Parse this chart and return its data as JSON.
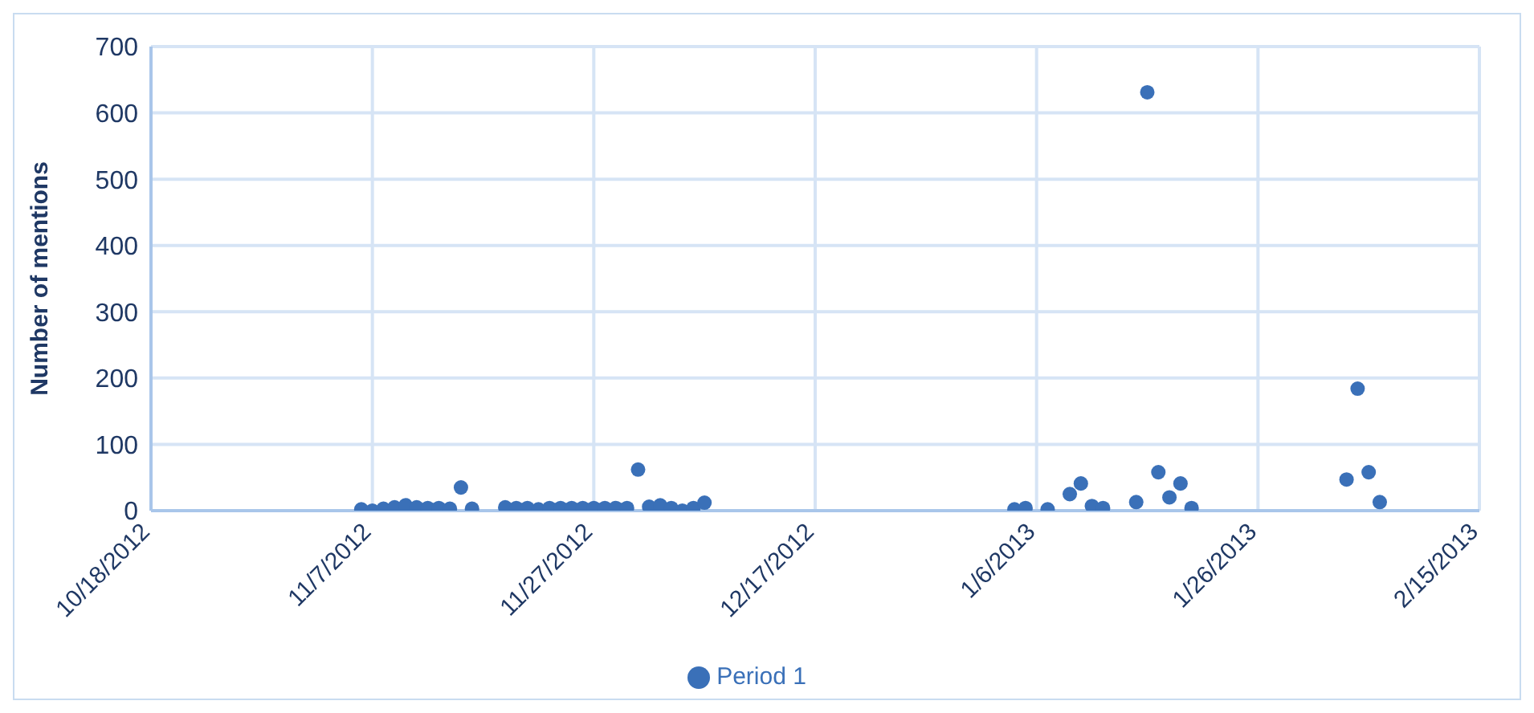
{
  "chart_data": {
    "type": "scatter",
    "ylabel": "Number of mentions",
    "xlim": [
      "2012-10-18",
      "2013-02-15"
    ],
    "xticks": [
      {
        "value": "2012-10-18",
        "label": "10/18/2012"
      },
      {
        "value": "2012-11-07",
        "label": "11/7/2012"
      },
      {
        "value": "2012-11-27",
        "label": "11/27/2012"
      },
      {
        "value": "2012-12-17",
        "label": "12/17/2012"
      },
      {
        "value": "2013-01-06",
        "label": "1/6/2013"
      },
      {
        "value": "2013-01-26",
        "label": "1/26/2013"
      },
      {
        "value": "2013-02-15",
        "label": "2/15/2013"
      }
    ],
    "ylim": [
      0,
      700
    ],
    "yticks": [
      0,
      100,
      200,
      300,
      400,
      500,
      600,
      700
    ],
    "grid": true,
    "legend": "bottom",
    "marker": "circle",
    "series": [
      {
        "name": "Period 1",
        "color": "#3a70b8",
        "x": [
          "2012-11-06",
          "2012-11-07",
          "2012-11-08",
          "2012-11-09",
          "2012-11-10",
          "2012-11-11",
          "2012-11-12",
          "2012-11-13",
          "2012-11-14",
          "2012-11-15",
          "2012-11-16",
          "2012-11-19",
          "2012-11-20",
          "2012-11-21",
          "2012-11-22",
          "2012-11-23",
          "2012-11-24",
          "2012-11-25",
          "2012-11-26",
          "2012-11-27",
          "2012-11-28",
          "2012-11-29",
          "2012-11-30",
          "2012-12-01",
          "2012-12-02",
          "2012-12-03",
          "2012-12-04",
          "2012-12-05",
          "2012-12-06",
          "2012-12-07",
          "2013-01-04",
          "2013-01-05",
          "2013-01-07",
          "2013-01-09",
          "2013-01-10",
          "2013-01-11",
          "2013-01-12",
          "2013-01-15",
          "2013-01-16",
          "2013-01-17",
          "2013-01-18",
          "2013-01-19",
          "2013-01-20",
          "2013-02-03",
          "2013-02-04",
          "2013-02-05",
          "2013-02-06"
        ],
        "values": [
          2,
          0,
          3,
          5,
          8,
          5,
          4,
          4,
          3,
          35,
          3,
          5,
          4,
          4,
          2,
          4,
          4,
          4,
          4,
          4,
          4,
          4,
          4,
          62,
          6,
          8,
          4,
          0,
          4,
          12,
          2,
          4,
          2,
          25,
          41,
          7,
          4,
          13,
          631,
          58,
          20,
          41,
          4,
          47,
          184,
          58,
          13
        ]
      }
    ]
  }
}
